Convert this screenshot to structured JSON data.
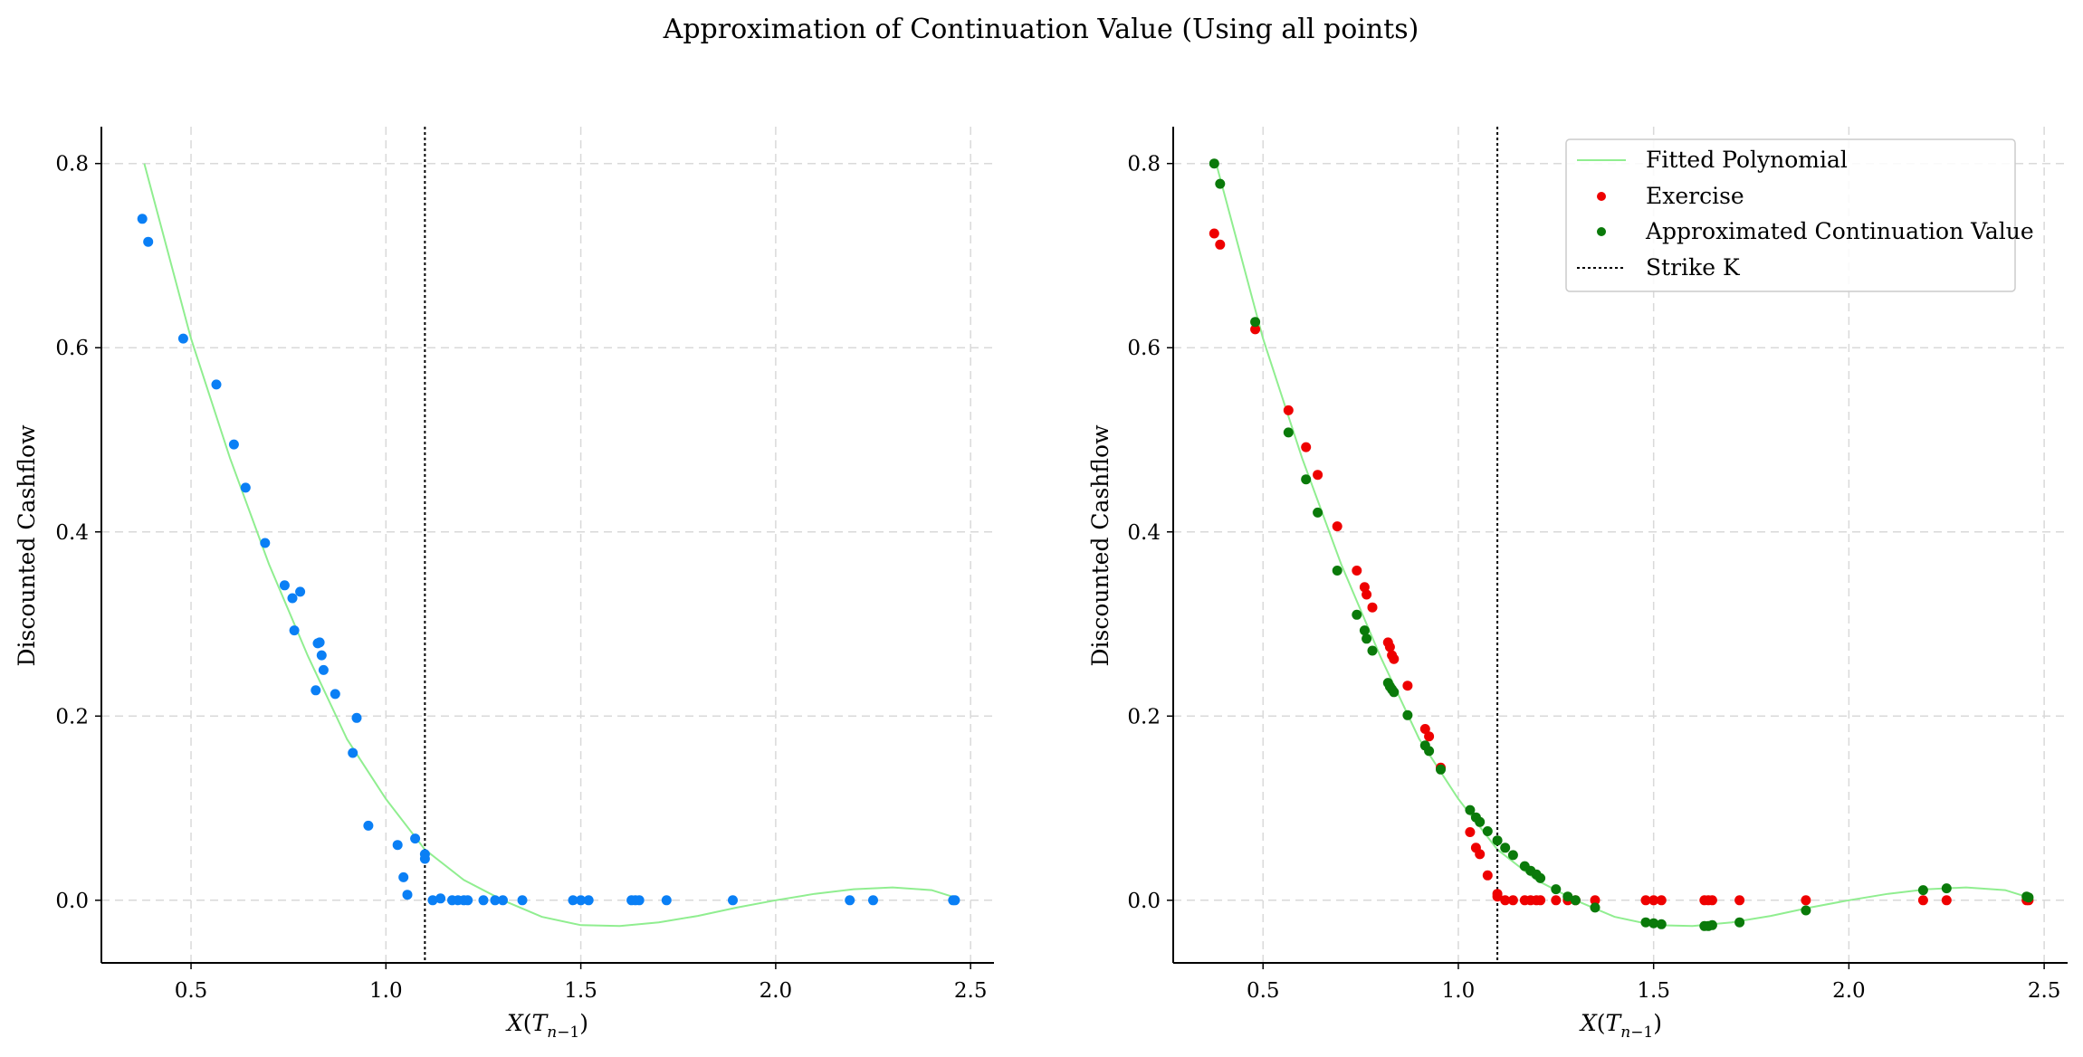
{
  "suptitle": "Approximation of Continuation Value (Using all points)",
  "colors": {
    "blue_points": "#0a7ff5",
    "exercise": "#ee0000",
    "continuation": "#0a7a0a",
    "polynomial": "#90ee90",
    "strike": "#000000",
    "grid": "#d9d9d9"
  },
  "chart_data": [
    {
      "type": "scatter",
      "title": "",
      "xlabel": "X(T_{n-1})",
      "ylabel": "Discounted Cashflow",
      "xlim": [
        0.27,
        2.56
      ],
      "ylim": [
        -0.068,
        0.84
      ],
      "xticks": [
        0.5,
        1.0,
        1.5,
        2.0,
        2.5
      ],
      "xtick_labels": [
        "0.5",
        "1.0",
        "1.5",
        "2.0",
        "2.5"
      ],
      "yticks": [
        0.0,
        0.2,
        0.4,
        0.6,
        0.8
      ],
      "ytick_labels": [
        "0.0",
        "0.2",
        "0.4",
        "0.6",
        "0.8"
      ],
      "grid": true,
      "strike": 1.1,
      "polynomial": {
        "x": [
          0.38,
          0.5,
          0.6,
          0.7,
          0.8,
          0.9,
          1.0,
          1.1,
          1.2,
          1.3,
          1.4,
          1.5,
          1.6,
          1.7,
          1.8,
          1.9,
          2.0,
          2.1,
          2.2,
          2.3,
          2.4,
          2.46
        ],
        "y": [
          0.8,
          0.61,
          0.48,
          0.365,
          0.265,
          0.175,
          0.11,
          0.055,
          0.022,
          0.0,
          -0.018,
          -0.027,
          -0.028,
          -0.024,
          -0.017,
          -0.008,
          0.0,
          0.007,
          0.012,
          0.014,
          0.011,
          0.003
        ]
      },
      "series": [
        {
          "x": [
            0.375,
            0.39,
            0.48,
            0.565,
            0.61,
            0.64,
            0.69,
            0.74,
            0.76,
            0.765,
            0.78,
            0.82,
            0.825,
            0.83,
            0.835,
            0.84,
            0.87,
            0.915,
            0.925,
            0.955,
            1.03,
            1.045,
            1.055,
            1.075,
            1.1,
            1.1,
            1.12,
            1.14,
            1.17,
            1.185,
            1.2,
            1.21,
            1.25,
            1.28,
            1.3,
            1.35,
            1.48,
            1.5,
            1.52,
            1.63,
            1.64,
            1.65,
            1.72,
            1.89,
            2.19,
            2.25,
            2.455,
            2.46
          ],
          "y": [
            0.74,
            0.715,
            0.61,
            0.56,
            0.495,
            0.448,
            0.388,
            0.342,
            0.328,
            0.293,
            0.335,
            0.228,
            0.279,
            0.28,
            0.266,
            0.25,
            0.224,
            0.16,
            0.198,
            0.081,
            0.06,
            0.025,
            0.006,
            0.067,
            0.045,
            0.05,
            0.0,
            0.002,
            0.0,
            0.0,
            0.0,
            0.0,
            0.0,
            0.0,
            0.0,
            0.0,
            0.0,
            0.0,
            0.0,
            0.0,
            0.0,
            0.0,
            0.0,
            0.0,
            0.0,
            0.0,
            0.0,
            0.0
          ]
        }
      ]
    },
    {
      "type": "scatter",
      "title": "",
      "xlabel": "X(T_{n-1})",
      "ylabel": "Discounted Cashflow",
      "xlim": [
        0.27,
        2.56
      ],
      "ylim": [
        -0.068,
        0.84
      ],
      "xticks": [
        0.5,
        1.0,
        1.5,
        2.0,
        2.5
      ],
      "xtick_labels": [
        "0.5",
        "1.0",
        "1.5",
        "2.0",
        "2.5"
      ],
      "yticks": [
        0.0,
        0.2,
        0.4,
        0.6,
        0.8
      ],
      "ytick_labels": [
        "0.0",
        "0.2",
        "0.4",
        "0.6",
        "0.8"
      ],
      "grid": true,
      "strike": 1.1,
      "legend_position": "top-right",
      "polynomial": {
        "name": "Fitted Polynomial",
        "x": [
          0.38,
          0.5,
          0.6,
          0.7,
          0.8,
          0.9,
          1.0,
          1.1,
          1.2,
          1.3,
          1.4,
          1.5,
          1.6,
          1.7,
          1.8,
          1.9,
          2.0,
          2.1,
          2.2,
          2.3,
          2.4,
          2.46
        ],
        "y": [
          0.8,
          0.61,
          0.48,
          0.365,
          0.265,
          0.175,
          0.11,
          0.055,
          0.022,
          0.0,
          -0.018,
          -0.027,
          -0.028,
          -0.024,
          -0.017,
          -0.008,
          0.0,
          0.007,
          0.012,
          0.014,
          0.011,
          0.003
        ]
      },
      "series": [
        {
          "name": "Exercise",
          "x": [
            0.375,
            0.39,
            0.48,
            0.565,
            0.61,
            0.64,
            0.69,
            0.74,
            0.76,
            0.765,
            0.78,
            0.82,
            0.825,
            0.83,
            0.835,
            0.87,
            0.915,
            0.925,
            0.955,
            1.03,
            1.045,
            1.055,
            1.075,
            1.1,
            1.1,
            1.12,
            1.14,
            1.17,
            1.185,
            1.2,
            1.21,
            1.25,
            1.28,
            1.3,
            1.35,
            1.48,
            1.5,
            1.52,
            1.63,
            1.64,
            1.65,
            1.72,
            1.89,
            2.19,
            2.25,
            2.455,
            2.46
          ],
          "y": [
            0.724,
            0.712,
            0.62,
            0.532,
            0.492,
            0.462,
            0.406,
            0.358,
            0.34,
            0.332,
            0.318,
            0.28,
            0.275,
            0.266,
            0.262,
            0.233,
            0.186,
            0.178,
            0.144,
            0.074,
            0.057,
            0.05,
            0.027,
            0.007,
            0.004,
            0.0,
            0.0,
            0.0,
            0.0,
            0.0,
            0.0,
            0.0,
            0.0,
            0.0,
            0.0,
            0.0,
            0.0,
            0.0,
            0.0,
            0.0,
            0.0,
            0.0,
            0.0,
            0.0,
            0.0,
            0.0,
            0.0
          ]
        },
        {
          "name": "Approximated Continuation Value",
          "x": [
            0.375,
            0.39,
            0.48,
            0.565,
            0.61,
            0.64,
            0.69,
            0.74,
            0.76,
            0.765,
            0.78,
            0.82,
            0.825,
            0.83,
            0.835,
            0.87,
            0.915,
            0.925,
            0.955,
            1.03,
            1.045,
            1.055,
            1.075,
            1.1,
            1.12,
            1.14,
            1.17,
            1.185,
            1.2,
            1.21,
            1.25,
            1.28,
            1.3,
            1.35,
            1.48,
            1.5,
            1.52,
            1.63,
            1.64,
            1.65,
            1.72,
            1.89,
            2.19,
            2.25,
            2.455,
            2.46
          ],
          "y": [
            0.8,
            0.778,
            0.628,
            0.508,
            0.457,
            0.421,
            0.358,
            0.31,
            0.293,
            0.284,
            0.271,
            0.236,
            0.232,
            0.229,
            0.226,
            0.201,
            0.168,
            0.162,
            0.142,
            0.098,
            0.09,
            0.085,
            0.075,
            0.065,
            0.057,
            0.049,
            0.037,
            0.032,
            0.028,
            0.024,
            0.012,
            0.004,
            0.0,
            -0.008,
            -0.024,
            -0.025,
            -0.026,
            -0.028,
            -0.028,
            -0.027,
            -0.024,
            -0.011,
            0.011,
            0.013,
            0.004,
            0.003
          ]
        }
      ],
      "strike_label": "Strike K"
    }
  ]
}
